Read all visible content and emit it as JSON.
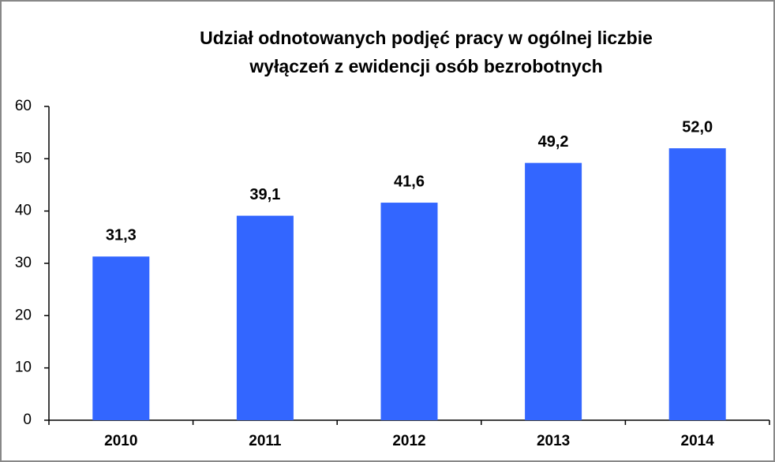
{
  "chart_data": {
    "type": "bar",
    "title": [
      "Udział odnotowanych podjęć pracy w ogólnej liczbie",
      "wyłączeń z ewidencji osób bezrobotnych"
    ],
    "categories": [
      "2010",
      "2011",
      "2012",
      "2013",
      "2014"
    ],
    "values": [
      31.3,
      39.1,
      41.6,
      49.2,
      52.0
    ],
    "value_labels": [
      "31,3",
      "39,1",
      "41,6",
      "49,2",
      "52,0"
    ],
    "color": "#3366ff",
    "ylim": [
      0,
      60
    ],
    "yticks": [
      0,
      10,
      20,
      30,
      40,
      50,
      60
    ],
    "grid": false
  }
}
